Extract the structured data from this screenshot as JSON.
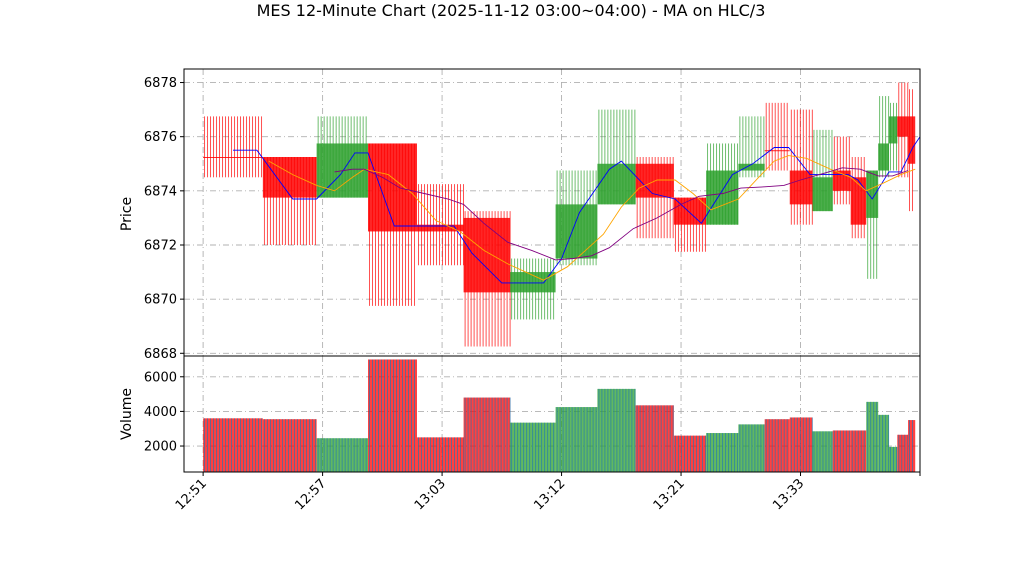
{
  "chart_data": {
    "type": "candlestick",
    "title": "MES 12-Minute Chart (2025-11-12 03:00~04:00) - MA on HLC/3",
    "price_ylabel": "Price",
    "volume_ylabel": "Volume",
    "price_ylim": [
      6867.9,
      6878.5
    ],
    "price_yticks": [
      6868,
      6870,
      6872,
      6874,
      6876,
      6878
    ],
    "volume_ylim": [
      500,
      7200
    ],
    "volume_yticks": [
      2000,
      4000,
      6000
    ],
    "xlim": [
      -1.6,
      60.0
    ],
    "x_tick_positions": [
      0,
      10,
      20,
      30,
      40,
      50,
      60
    ],
    "x_tick_labels": [
      "12:51",
      "12:57",
      "13:03",
      "13:12",
      "13:21",
      "13:33",
      ""
    ],
    "grid": true,
    "colors": {
      "up": "#2ca02c",
      "down": "#ff0000",
      "ma_fast": "#0000ff",
      "ma_mid": "#ffa500",
      "ma_slow": "#800080",
      "volume_bar_fill": "#1f77b4",
      "grid": "#b0b0b0"
    },
    "bars": [
      {
        "x0": 0,
        "x1": 5,
        "open": 6875.25,
        "high": 6876.75,
        "low": 6874.5,
        "close": 6875.25,
        "volume": 3600,
        "dir": "down"
      },
      {
        "x0": 5,
        "x1": 9.5,
        "open": 6875.25,
        "high": 6875.25,
        "low": 6872.0,
        "close": 6873.75,
        "volume": 3550,
        "dir": "down"
      },
      {
        "x0": 9.5,
        "x1": 13.8,
        "open": 6873.75,
        "high": 6876.75,
        "low": 6873.75,
        "close": 6875.75,
        "volume": 2450,
        "dir": "up"
      },
      {
        "x0": 13.8,
        "x1": 17.9,
        "open": 6875.75,
        "high": 6875.75,
        "low": 6869.75,
        "close": 6872.5,
        "volume": 7000,
        "dir": "down"
      },
      {
        "x0": 17.9,
        "x1": 21.8,
        "open": 6872.75,
        "high": 6874.25,
        "low": 6871.25,
        "close": 6872.5,
        "volume": 2500,
        "dir": "down"
      },
      {
        "x0": 21.8,
        "x1": 25.7,
        "open": 6873.0,
        "high": 6873.25,
        "low": 6868.25,
        "close": 6870.25,
        "volume": 4800,
        "dir": "down"
      },
      {
        "x0": 25.7,
        "x1": 29.5,
        "open": 6870.25,
        "high": 6871.5,
        "low": 6869.25,
        "close": 6871.0,
        "volume": 3350,
        "dir": "up"
      },
      {
        "x0": 29.5,
        "x1": 33.0,
        "open": 6871.5,
        "high": 6874.75,
        "low": 6871.25,
        "close": 6873.5,
        "volume": 4250,
        "dir": "up"
      },
      {
        "x0": 33.0,
        "x1": 36.2,
        "open": 6873.5,
        "high": 6877.0,
        "low": 6873.5,
        "close": 6875.0,
        "volume": 5300,
        "dir": "up"
      },
      {
        "x0": 36.2,
        "x1": 39.4,
        "open": 6875.0,
        "high": 6875.25,
        "low": 6872.25,
        "close": 6873.75,
        "volume": 4350,
        "dir": "down"
      },
      {
        "x0": 39.4,
        "x1": 42.1,
        "open": 6873.75,
        "high": 6873.75,
        "low": 6871.75,
        "close": 6872.75,
        "volume": 2600,
        "dir": "down"
      },
      {
        "x0": 42.1,
        "x1": 44.8,
        "open": 6872.75,
        "high": 6875.75,
        "low": 6872.75,
        "close": 6874.75,
        "volume": 2750,
        "dir": "up"
      },
      {
        "x0": 44.8,
        "x1": 47.0,
        "open": 6874.75,
        "high": 6876.75,
        "low": 6874.5,
        "close": 6875.0,
        "volume": 3250,
        "dir": "up"
      },
      {
        "x0": 47.0,
        "x1": 49.1,
        "open": 6875.5,
        "high": 6877.25,
        "low": 6874.75,
        "close": 6875.5,
        "volume": 3550,
        "dir": "down"
      },
      {
        "x0": 49.1,
        "x1": 51.0,
        "open": 6874.75,
        "high": 6877.0,
        "low": 6872.75,
        "close": 6873.5,
        "volume": 3650,
        "dir": "down"
      },
      {
        "x0": 51.0,
        "x1": 52.7,
        "open": 6873.25,
        "high": 6876.25,
        "low": 6873.25,
        "close": 6874.5,
        "volume": 2850,
        "dir": "up"
      },
      {
        "x0": 52.7,
        "x1": 54.2,
        "open": 6874.75,
        "high": 6876.0,
        "low": 6873.5,
        "close": 6874.0,
        "volume": 2900,
        "dir": "down"
      },
      {
        "x0": 54.2,
        "x1": 55.5,
        "open": 6874.5,
        "high": 6875.25,
        "low": 6872.25,
        "close": 6872.75,
        "volume": 2900,
        "dir": "down"
      },
      {
        "x0": 55.5,
        "x1": 56.5,
        "open": 6873.0,
        "high": 6874.75,
        "low": 6870.75,
        "close": 6874.75,
        "volume": 4550,
        "dir": "up"
      },
      {
        "x0": 56.5,
        "x1": 57.4,
        "open": 6874.75,
        "high": 6877.5,
        "low": 6874.5,
        "close": 6875.75,
        "volume": 3800,
        "dir": "up"
      },
      {
        "x0": 57.4,
        "x1": 58.1,
        "open": 6875.75,
        "high": 6877.25,
        "low": 6874.75,
        "close": 6876.75,
        "volume": 1950,
        "dir": "up"
      },
      {
        "x0": 58.1,
        "x1": 59.0,
        "open": 6876.75,
        "high": 6878.0,
        "low": 6874.5,
        "close": 6876.0,
        "volume": 2650,
        "dir": "down"
      },
      {
        "x0": 59.0,
        "x1": 59.6,
        "open": 6876.75,
        "high": 6877.75,
        "low": 6873.25,
        "close": 6875.0,
        "volume": 3500,
        "dir": "down"
      }
    ],
    "ma_series": [
      {
        "key": "ma_fast",
        "points": [
          [
            2.5,
            6875.5
          ],
          [
            4.5,
            6875.5
          ],
          [
            7.5,
            6873.7
          ],
          [
            9.5,
            6873.7
          ],
          [
            11.5,
            6874.6
          ],
          [
            12.7,
            6875.4
          ],
          [
            13.8,
            6875.4
          ],
          [
            16,
            6872.7
          ],
          [
            18.5,
            6872.7
          ],
          [
            21,
            6872.7
          ],
          [
            22.5,
            6871.7
          ],
          [
            25,
            6870.6
          ],
          [
            28.5,
            6870.6
          ],
          [
            30.0,
            6871.5
          ],
          [
            31.5,
            6873.2
          ],
          [
            34,
            6874.8
          ],
          [
            35,
            6875.1
          ],
          [
            37.6,
            6873.9
          ],
          [
            39.5,
            6873.7
          ],
          [
            41.7,
            6872.8
          ],
          [
            44.3,
            6874.6
          ],
          [
            46.0,
            6875.0
          ],
          [
            47.8,
            6875.6
          ],
          [
            49.0,
            6875.6
          ],
          [
            50.8,
            6874.6
          ],
          [
            52.2,
            6874.6
          ],
          [
            54.0,
            6874.6
          ],
          [
            54.8,
            6874.4
          ],
          [
            56.0,
            6873.7
          ],
          [
            57.4,
            6874.7
          ],
          [
            58.4,
            6874.7
          ],
          [
            59.4,
            6875.6
          ],
          [
            60.0,
            6876.0
          ]
        ]
      },
      {
        "key": "ma_mid",
        "points": [
          [
            5.5,
            6875.1
          ],
          [
            7.5,
            6874.6
          ],
          [
            9.5,
            6874.2
          ],
          [
            11,
            6874.0
          ],
          [
            12.5,
            6874.5
          ],
          [
            13.5,
            6874.8
          ],
          [
            15.5,
            6874.6
          ],
          [
            17.5,
            6873.9
          ],
          [
            19.5,
            6872.9
          ],
          [
            21.5,
            6872.5
          ],
          [
            23.5,
            6871.8
          ],
          [
            25.5,
            6871.3
          ],
          [
            28.5,
            6870.7
          ],
          [
            30.5,
            6871.2
          ],
          [
            32,
            6871.8
          ],
          [
            33.5,
            6872.4
          ],
          [
            35,
            6873.4
          ],
          [
            36.5,
            6874.1
          ],
          [
            38,
            6874.4
          ],
          [
            39.5,
            6874.4
          ],
          [
            41,
            6873.9
          ],
          [
            42.5,
            6873.3
          ],
          [
            44.8,
            6873.7
          ],
          [
            46.5,
            6874.5
          ],
          [
            47.8,
            6875.1
          ],
          [
            49.0,
            6875.3
          ],
          [
            50.5,
            6875.2
          ],
          [
            52.5,
            6874.8
          ],
          [
            54.2,
            6874.5
          ],
          [
            55.5,
            6874.0
          ],
          [
            57.0,
            6874.3
          ],
          [
            58.4,
            6874.6
          ],
          [
            59.6,
            6874.8
          ]
        ]
      },
      {
        "key": "ma_slow",
        "points": [
          [
            11,
            6874.7
          ],
          [
            12.5,
            6874.8
          ],
          [
            13.5,
            6874.8
          ],
          [
            15,
            6874.5
          ],
          [
            16.5,
            6874.1
          ],
          [
            18.5,
            6873.9
          ],
          [
            20.5,
            6873.7
          ],
          [
            21.8,
            6873.5
          ],
          [
            23.5,
            6872.8
          ],
          [
            25.5,
            6872.1
          ],
          [
            27.5,
            6871.8
          ],
          [
            29.5,
            6871.45
          ],
          [
            31,
            6871.5
          ],
          [
            32.5,
            6871.6
          ],
          [
            34,
            6871.9
          ],
          [
            36,
            6872.6
          ],
          [
            38,
            6873.0
          ],
          [
            40,
            6873.5
          ],
          [
            41.5,
            6873.8
          ],
          [
            43.5,
            6873.9
          ],
          [
            45.0,
            6874.1
          ],
          [
            47.0,
            6874.15
          ],
          [
            48.6,
            6874.2
          ],
          [
            50,
            6874.4
          ],
          [
            52,
            6874.65
          ],
          [
            53.5,
            6874.85
          ],
          [
            55.0,
            6874.8
          ],
          [
            56.5,
            6874.55
          ],
          [
            57.7,
            6874.55
          ],
          [
            59.0,
            6874.75
          ]
        ]
      }
    ]
  }
}
